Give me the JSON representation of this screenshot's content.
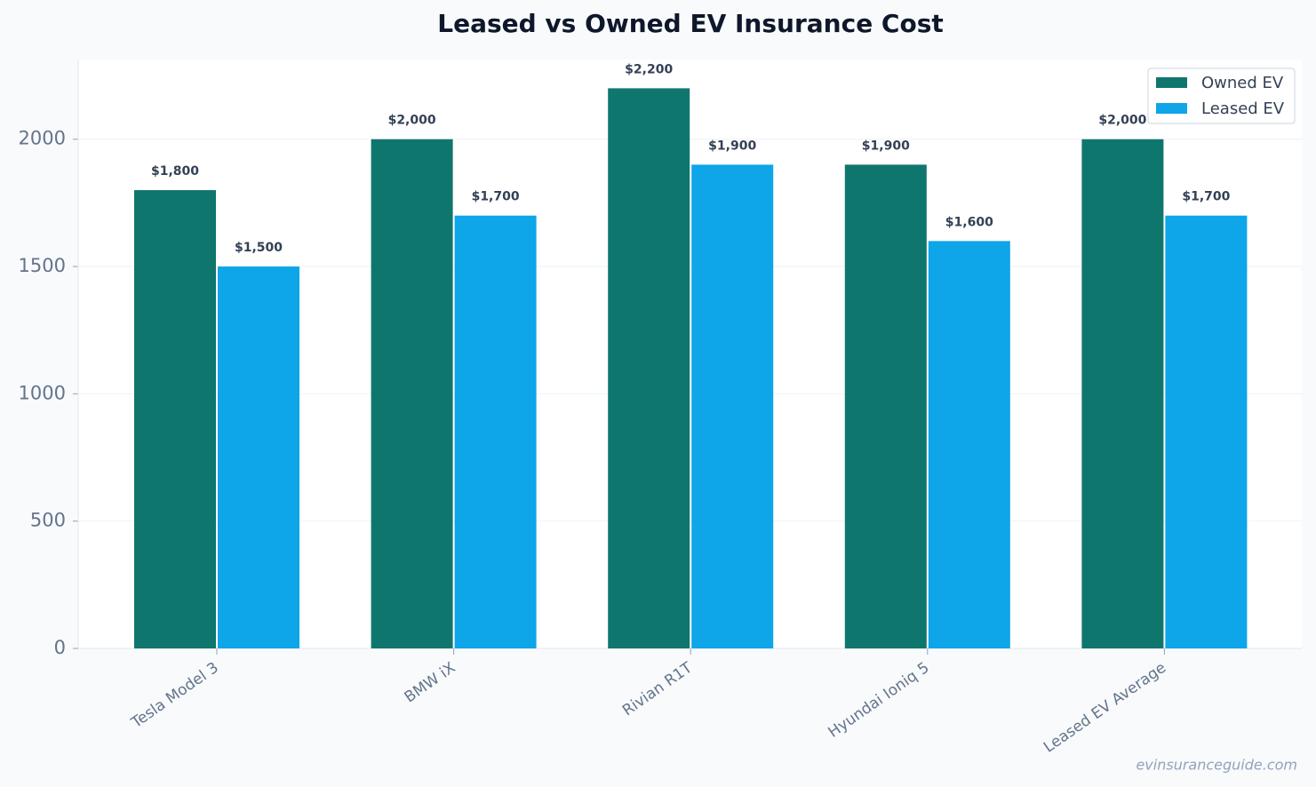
{
  "chart_data": {
    "type": "bar",
    "title": "Leased vs Owned EV Insurance Cost",
    "categories": [
      "Tesla Model 3",
      "BMW iX",
      "Rivian R1T",
      "Hyundai Ioniq 5",
      "Leased EV Average"
    ],
    "series": [
      {
        "name": "Owned EV",
        "color": "#0f766e",
        "values": [
          1800,
          2000,
          2200,
          1900,
          2000
        ],
        "value_labels": [
          "$1,800",
          "$2,000",
          "$2,200",
          "$1,900",
          "$2,000"
        ]
      },
      {
        "name": "Leased EV",
        "color": "#0ea5e9",
        "values": [
          1500,
          1700,
          1900,
          1600,
          1700
        ],
        "value_labels": [
          "$1,500",
          "$1,700",
          "$1,900",
          "$1,600",
          "$1,700"
        ]
      }
    ],
    "ylim": [
      0,
      2313
    ],
    "yticks": [
      0,
      500,
      1000,
      1500,
      2000
    ],
    "grid": true,
    "legend": "upper right",
    "watermark": "evinsuranceguide.com"
  }
}
